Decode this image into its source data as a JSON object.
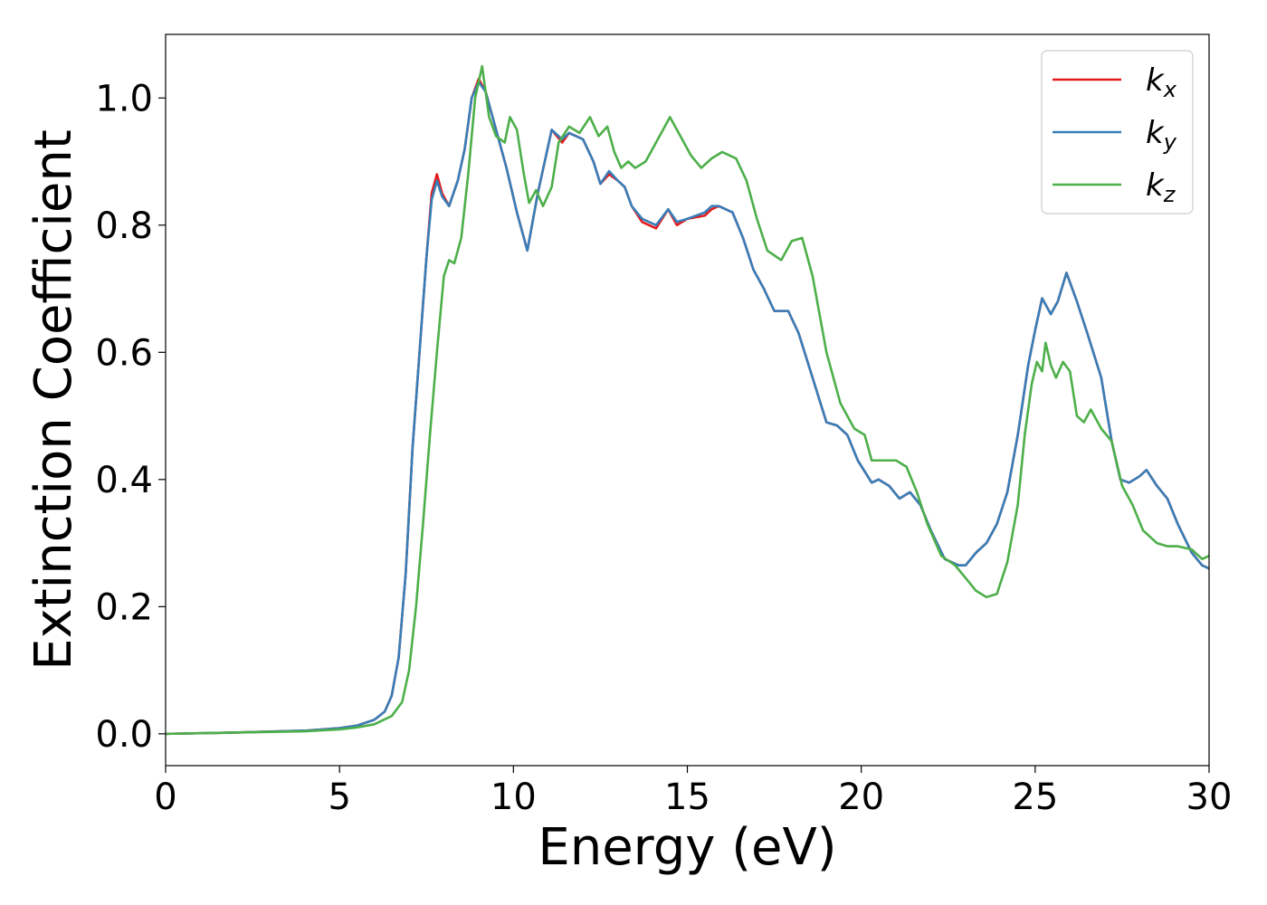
{
  "chart_data": {
    "type": "line",
    "xlabel": "Energy (eV)",
    "ylabel": "Extinction Coefficient",
    "xlim": [
      0,
      30
    ],
    "ylim": [
      -0.05,
      1.1
    ],
    "xticks": [
      0,
      5,
      10,
      15,
      20,
      25,
      30
    ],
    "xtick_labels": [
      "0",
      "5",
      "10",
      "15",
      "20",
      "25",
      "30"
    ],
    "yticks": [
      0.0,
      0.2,
      0.4,
      0.6,
      0.8,
      1.0
    ],
    "ytick_labels": [
      "0.0",
      "0.2",
      "0.4",
      "0.6",
      "0.8",
      "1.0"
    ],
    "grid": false,
    "legend_position": "top-right",
    "series": [
      {
        "name": "k_x",
        "label_base": "k",
        "label_sub": "x",
        "color": "#e41a1c",
        "points": [
          [
            0,
            0.0
          ],
          [
            2,
            0.002
          ],
          [
            4,
            0.005
          ],
          [
            5,
            0.009
          ],
          [
            5.5,
            0.013
          ],
          [
            6,
            0.022
          ],
          [
            6.3,
            0.035
          ],
          [
            6.5,
            0.06
          ],
          [
            6.7,
            0.12
          ],
          [
            6.9,
            0.25
          ],
          [
            7.1,
            0.45
          ],
          [
            7.3,
            0.6
          ],
          [
            7.5,
            0.75
          ],
          [
            7.65,
            0.85
          ],
          [
            7.8,
            0.88
          ],
          [
            7.95,
            0.85
          ],
          [
            8.15,
            0.83
          ],
          [
            8.4,
            0.87
          ],
          [
            8.6,
            0.92
          ],
          [
            8.8,
            1.0
          ],
          [
            9.0,
            1.03
          ],
          [
            9.2,
            1.01
          ],
          [
            9.5,
            0.95
          ],
          [
            9.8,
            0.89
          ],
          [
            10.1,
            0.82
          ],
          [
            10.4,
            0.76
          ],
          [
            10.7,
            0.85
          ],
          [
            11.1,
            0.95
          ],
          [
            11.4,
            0.93
          ],
          [
            11.6,
            0.945
          ],
          [
            12.0,
            0.935
          ],
          [
            12.3,
            0.9
          ],
          [
            12.5,
            0.865
          ],
          [
            12.75,
            0.88
          ],
          [
            13.0,
            0.87
          ],
          [
            13.2,
            0.86
          ],
          [
            13.4,
            0.83
          ],
          [
            13.7,
            0.805
          ],
          [
            14.1,
            0.795
          ],
          [
            14.45,
            0.825
          ],
          [
            14.7,
            0.8
          ],
          [
            15.0,
            0.81
          ],
          [
            15.5,
            0.815
          ],
          [
            15.7,
            0.825
          ],
          [
            15.9,
            0.83
          ],
          [
            16.3,
            0.82
          ],
          [
            16.6,
            0.78
          ],
          [
            16.9,
            0.73
          ],
          [
            17.2,
            0.7
          ],
          [
            17.5,
            0.665
          ],
          [
            17.9,
            0.665
          ],
          [
            18.2,
            0.63
          ],
          [
            18.6,
            0.56
          ],
          [
            19.0,
            0.49
          ],
          [
            19.3,
            0.485
          ],
          [
            19.6,
            0.47
          ],
          [
            19.9,
            0.43
          ],
          [
            20.3,
            0.395
          ],
          [
            20.5,
            0.4
          ],
          [
            20.8,
            0.39
          ],
          [
            21.1,
            0.37
          ],
          [
            21.4,
            0.38
          ],
          [
            21.7,
            0.36
          ],
          [
            22.0,
            0.32
          ],
          [
            22.4,
            0.275
          ],
          [
            22.8,
            0.265
          ],
          [
            23.0,
            0.265
          ],
          [
            23.3,
            0.285
          ],
          [
            23.6,
            0.3
          ],
          [
            23.9,
            0.33
          ],
          [
            24.2,
            0.38
          ],
          [
            24.5,
            0.47
          ],
          [
            24.8,
            0.58
          ],
          [
            25.0,
            0.635
          ],
          [
            25.2,
            0.685
          ],
          [
            25.45,
            0.66
          ],
          [
            25.65,
            0.68
          ],
          [
            25.9,
            0.725
          ],
          [
            26.2,
            0.68
          ],
          [
            26.5,
            0.63
          ],
          [
            26.9,
            0.56
          ],
          [
            27.2,
            0.46
          ],
          [
            27.45,
            0.4
          ],
          [
            27.7,
            0.395
          ],
          [
            28.0,
            0.405
          ],
          [
            28.2,
            0.415
          ],
          [
            28.5,
            0.39
          ],
          [
            28.8,
            0.37
          ],
          [
            29.1,
            0.33
          ],
          [
            29.5,
            0.285
          ],
          [
            29.8,
            0.265
          ],
          [
            30,
            0.26
          ]
        ]
      },
      {
        "name": "k_y",
        "label_base": "k",
        "label_sub": "y",
        "color": "#377eb8",
        "points": [
          [
            0,
            0.0
          ],
          [
            2,
            0.002
          ],
          [
            4,
            0.005
          ],
          [
            5,
            0.009
          ],
          [
            5.5,
            0.013
          ],
          [
            6,
            0.022
          ],
          [
            6.3,
            0.035
          ],
          [
            6.5,
            0.06
          ],
          [
            6.7,
            0.12
          ],
          [
            6.9,
            0.25
          ],
          [
            7.1,
            0.45
          ],
          [
            7.3,
            0.6
          ],
          [
            7.5,
            0.75
          ],
          [
            7.65,
            0.84
          ],
          [
            7.8,
            0.87
          ],
          [
            7.95,
            0.845
          ],
          [
            8.15,
            0.83
          ],
          [
            8.4,
            0.87
          ],
          [
            8.6,
            0.92
          ],
          [
            8.8,
            1.0
          ],
          [
            9.0,
            1.025
          ],
          [
            9.2,
            1.01
          ],
          [
            9.5,
            0.95
          ],
          [
            9.8,
            0.89
          ],
          [
            10.1,
            0.82
          ],
          [
            10.4,
            0.76
          ],
          [
            10.7,
            0.85
          ],
          [
            11.1,
            0.95
          ],
          [
            11.4,
            0.935
          ],
          [
            11.6,
            0.945
          ],
          [
            12.0,
            0.935
          ],
          [
            12.3,
            0.9
          ],
          [
            12.5,
            0.865
          ],
          [
            12.75,
            0.885
          ],
          [
            13.0,
            0.87
          ],
          [
            13.2,
            0.86
          ],
          [
            13.4,
            0.83
          ],
          [
            13.7,
            0.81
          ],
          [
            14.1,
            0.8
          ],
          [
            14.45,
            0.825
          ],
          [
            14.7,
            0.805
          ],
          [
            15.0,
            0.81
          ],
          [
            15.5,
            0.82
          ],
          [
            15.7,
            0.83
          ],
          [
            15.9,
            0.83
          ],
          [
            16.3,
            0.82
          ],
          [
            16.6,
            0.78
          ],
          [
            16.9,
            0.73
          ],
          [
            17.2,
            0.7
          ],
          [
            17.5,
            0.665
          ],
          [
            17.9,
            0.665
          ],
          [
            18.2,
            0.63
          ],
          [
            18.6,
            0.56
          ],
          [
            19.0,
            0.49
          ],
          [
            19.3,
            0.485
          ],
          [
            19.6,
            0.47
          ],
          [
            19.9,
            0.43
          ],
          [
            20.3,
            0.395
          ],
          [
            20.5,
            0.4
          ],
          [
            20.8,
            0.39
          ],
          [
            21.1,
            0.37
          ],
          [
            21.4,
            0.38
          ],
          [
            21.7,
            0.36
          ],
          [
            22.0,
            0.32
          ],
          [
            22.4,
            0.275
          ],
          [
            22.8,
            0.265
          ],
          [
            23.0,
            0.265
          ],
          [
            23.3,
            0.285
          ],
          [
            23.6,
            0.3
          ],
          [
            23.9,
            0.33
          ],
          [
            24.2,
            0.38
          ],
          [
            24.5,
            0.47
          ],
          [
            24.8,
            0.58
          ],
          [
            25.0,
            0.635
          ],
          [
            25.2,
            0.685
          ],
          [
            25.45,
            0.66
          ],
          [
            25.65,
            0.68
          ],
          [
            25.9,
            0.725
          ],
          [
            26.2,
            0.68
          ],
          [
            26.5,
            0.63
          ],
          [
            26.9,
            0.56
          ],
          [
            27.2,
            0.46
          ],
          [
            27.45,
            0.4
          ],
          [
            27.7,
            0.395
          ],
          [
            28.0,
            0.405
          ],
          [
            28.2,
            0.415
          ],
          [
            28.5,
            0.39
          ],
          [
            28.8,
            0.37
          ],
          [
            29.1,
            0.33
          ],
          [
            29.5,
            0.285
          ],
          [
            29.8,
            0.265
          ],
          [
            30,
            0.26
          ]
        ]
      },
      {
        "name": "k_z",
        "label_base": "k",
        "label_sub": "z",
        "color": "#4daf4a",
        "points": [
          [
            0,
            0.0
          ],
          [
            2,
            0.002
          ],
          [
            4,
            0.004
          ],
          [
            5,
            0.007
          ],
          [
            5.5,
            0.01
          ],
          [
            6,
            0.015
          ],
          [
            6.5,
            0.028
          ],
          [
            6.8,
            0.05
          ],
          [
            7.0,
            0.1
          ],
          [
            7.2,
            0.2
          ],
          [
            7.4,
            0.33
          ],
          [
            7.6,
            0.47
          ],
          [
            7.8,
            0.6
          ],
          [
            8.0,
            0.72
          ],
          [
            8.15,
            0.745
          ],
          [
            8.3,
            0.74
          ],
          [
            8.5,
            0.78
          ],
          [
            8.7,
            0.88
          ],
          [
            8.9,
            1.0
          ],
          [
            9.1,
            1.05
          ],
          [
            9.3,
            0.97
          ],
          [
            9.5,
            0.94
          ],
          [
            9.75,
            0.93
          ],
          [
            9.9,
            0.97
          ],
          [
            10.1,
            0.95
          ],
          [
            10.3,
            0.88
          ],
          [
            10.45,
            0.835
          ],
          [
            10.65,
            0.855
          ],
          [
            10.85,
            0.83
          ],
          [
            11.1,
            0.86
          ],
          [
            11.3,
            0.93
          ],
          [
            11.6,
            0.955
          ],
          [
            11.9,
            0.945
          ],
          [
            12.2,
            0.97
          ],
          [
            12.45,
            0.94
          ],
          [
            12.7,
            0.955
          ],
          [
            12.9,
            0.915
          ],
          [
            13.1,
            0.89
          ],
          [
            13.3,
            0.9
          ],
          [
            13.5,
            0.89
          ],
          [
            13.8,
            0.9
          ],
          [
            14.1,
            0.93
          ],
          [
            14.5,
            0.97
          ],
          [
            14.8,
            0.94
          ],
          [
            15.1,
            0.91
          ],
          [
            15.4,
            0.89
          ],
          [
            15.7,
            0.905
          ],
          [
            16.0,
            0.915
          ],
          [
            16.4,
            0.905
          ],
          [
            16.7,
            0.87
          ],
          [
            17.0,
            0.81
          ],
          [
            17.3,
            0.76
          ],
          [
            17.7,
            0.745
          ],
          [
            18.0,
            0.775
          ],
          [
            18.3,
            0.78
          ],
          [
            18.6,
            0.72
          ],
          [
            19.0,
            0.6
          ],
          [
            19.4,
            0.52
          ],
          [
            19.8,
            0.48
          ],
          [
            20.1,
            0.47
          ],
          [
            20.3,
            0.43
          ],
          [
            20.7,
            0.43
          ],
          [
            21.0,
            0.43
          ],
          [
            21.3,
            0.42
          ],
          [
            21.6,
            0.38
          ],
          [
            21.9,
            0.33
          ],
          [
            22.3,
            0.28
          ],
          [
            22.7,
            0.265
          ],
          [
            23.0,
            0.245
          ],
          [
            23.3,
            0.225
          ],
          [
            23.6,
            0.215
          ],
          [
            23.9,
            0.22
          ],
          [
            24.2,
            0.27
          ],
          [
            24.5,
            0.36
          ],
          [
            24.7,
            0.47
          ],
          [
            24.9,
            0.55
          ],
          [
            25.05,
            0.585
          ],
          [
            25.2,
            0.57
          ],
          [
            25.3,
            0.615
          ],
          [
            25.45,
            0.58
          ],
          [
            25.6,
            0.56
          ],
          [
            25.8,
            0.585
          ],
          [
            26.0,
            0.57
          ],
          [
            26.2,
            0.5
          ],
          [
            26.4,
            0.49
          ],
          [
            26.6,
            0.51
          ],
          [
            26.9,
            0.48
          ],
          [
            27.2,
            0.46
          ],
          [
            27.5,
            0.39
          ],
          [
            27.8,
            0.36
          ],
          [
            28.1,
            0.32
          ],
          [
            28.5,
            0.3
          ],
          [
            28.8,
            0.295
          ],
          [
            29.1,
            0.295
          ],
          [
            29.5,
            0.29
          ],
          [
            29.8,
            0.275
          ],
          [
            30,
            0.28
          ]
        ]
      }
    ]
  }
}
